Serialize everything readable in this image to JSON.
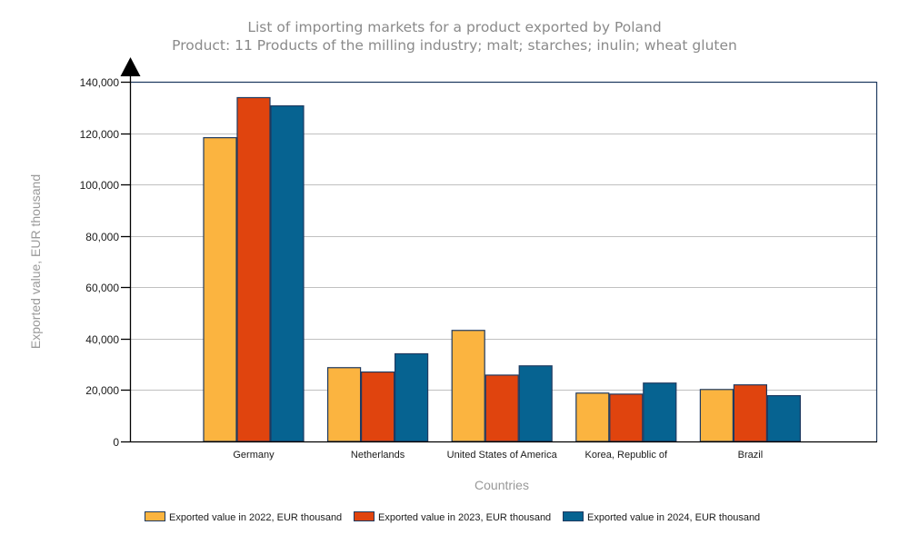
{
  "chart_data": {
    "type": "bar",
    "title": "List of importing markets for a product exported by Poland",
    "subtitle": "Product: 11 Products of the milling industry; malt; starches; inulin; wheat gluten",
    "xlabel": "Countries",
    "ylabel": "Exported value, EUR thousand",
    "categories": [
      "Germany",
      "Netherlands",
      "United States of America",
      "Korea, Republic of",
      "Brazil"
    ],
    "series": [
      {
        "name": "Exported value in 2022, EUR thousand",
        "color": "#FBB440",
        "values": [
          118400,
          28900,
          43400,
          19000,
          20400
        ]
      },
      {
        "name": "Exported value in 2023, EUR thousand",
        "color": "#E0440E",
        "values": [
          134000,
          27200,
          26000,
          18600,
          22200
        ]
      },
      {
        "name": "Exported value in 2024, EUR thousand",
        "color": "#066391",
        "values": [
          130800,
          34300,
          29600,
          22900,
          18000
        ]
      }
    ],
    "ylim": [
      0,
      140000
    ],
    "yticks": [
      0,
      20000,
      40000,
      60000,
      80000,
      100000,
      120000,
      140000
    ],
    "ytick_labels": [
      "0",
      "20,000",
      "40,000",
      "60,000",
      "80,000",
      "100,000",
      "120,000",
      "140,000"
    ],
    "grid": true,
    "legend_position": "bottom",
    "bar_outline_color": "#1F3A60",
    "frame_color": "#1F3A60",
    "gridline_color": "#C0C0C0"
  }
}
